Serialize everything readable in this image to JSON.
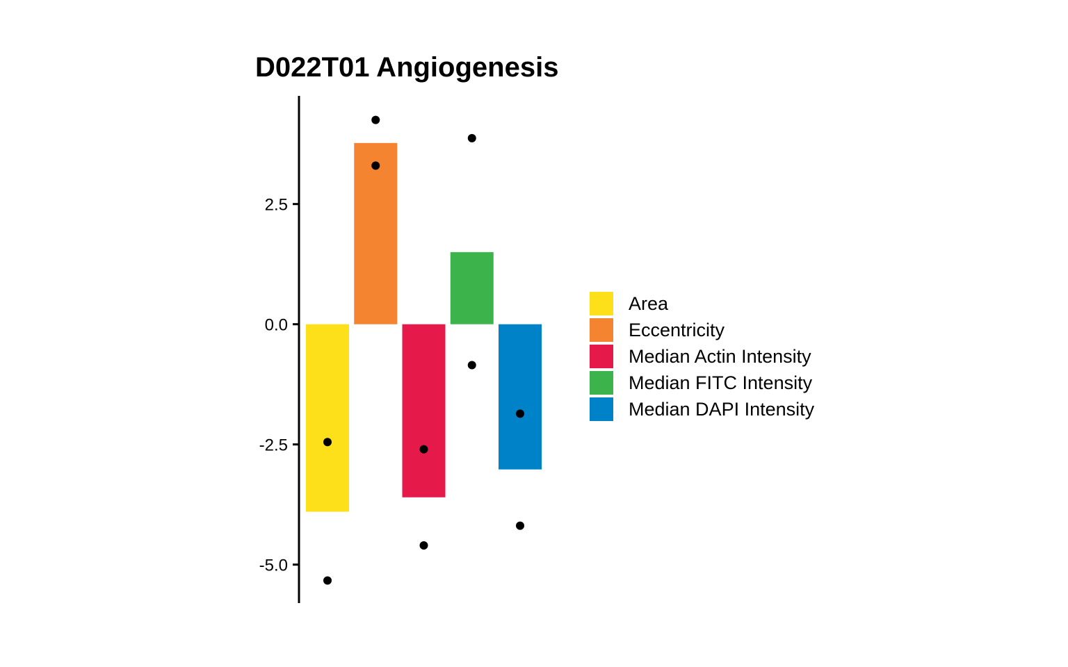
{
  "chart_data": {
    "type": "bar",
    "title": "D022T01 Angiogenesis",
    "xlabel": "",
    "ylabel": "",
    "ylim": [
      -5.8,
      4.75
    ],
    "yticks": [
      2.5,
      0.0,
      -2.5,
      -5.0
    ],
    "ytick_labels": [
      "2.5",
      "0.0",
      "-2.5",
      "-5.0"
    ],
    "categories": [
      "Area",
      "Eccentricity",
      "Median Actin Intensity",
      "Median FITC Intensity",
      "Median DAPI Intensity"
    ],
    "values": [
      -3.9,
      3.77,
      -3.6,
      1.5,
      -3.02
    ],
    "points": [
      [
        -2.45,
        -5.33
      ],
      [
        4.25,
        3.3
      ],
      [
        -2.6,
        -4.6
      ],
      [
        3.87,
        -0.85
      ],
      [
        -1.86,
        -4.19
      ]
    ],
    "colors": [
      "#FDE01A",
      "#F58430",
      "#E6194B",
      "#3CB44B",
      "#0082C8"
    ],
    "point_color": "#000000",
    "grid": false,
    "legend": {
      "position": "right",
      "entries": [
        "Area",
        "Eccentricity",
        "Median Actin Intensity",
        "Median FITC Intensity",
        "Median DAPI Intensity"
      ]
    }
  }
}
